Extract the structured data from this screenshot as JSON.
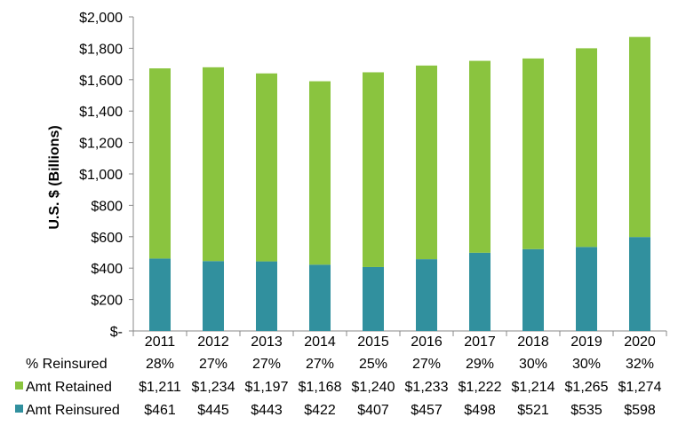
{
  "chart_data": {
    "type": "bar",
    "stacked": true,
    "categories": [
      "2011",
      "2012",
      "2013",
      "2014",
      "2015",
      "2016",
      "2017",
      "2018",
      "2019",
      "2020"
    ],
    "ylabel": "U.S. $ (Billions)",
    "ylim": [
      0,
      2000
    ],
    "yticks": [
      "$-",
      "$200",
      "$400",
      "$600",
      "$800",
      "$1,000",
      "$1,200",
      "$1,400",
      "$1,600",
      "$1,800",
      "$2,000"
    ],
    "series": [
      {
        "name": "Amt Reinsured",
        "color": "#31909E",
        "values": [
          461,
          445,
          443,
          422,
          407,
          457,
          498,
          521,
          535,
          598
        ],
        "labels": [
          "$461",
          "$445",
          "$443",
          "$422",
          "$407",
          "$457",
          "$498",
          "$521",
          "$535",
          "$598"
        ]
      },
      {
        "name": "Amt Retained",
        "color": "#8AC43F",
        "values": [
          1211,
          1234,
          1197,
          1168,
          1240,
          1233,
          1222,
          1214,
          1265,
          1274
        ],
        "labels": [
          "$1,211",
          "$1,234",
          "$1,197",
          "$1,168",
          "$1,240",
          "$1,233",
          "$1,222",
          "$1,214",
          "$1,265",
          "$1,274"
        ]
      }
    ],
    "percent_reinsured": {
      "label": "% Reinsured",
      "values": [
        "28%",
        "27%",
        "27%",
        "27%",
        "25%",
        "27%",
        "29%",
        "30%",
        "30%",
        "32%"
      ]
    },
    "grid": false,
    "legend": "data-table"
  }
}
